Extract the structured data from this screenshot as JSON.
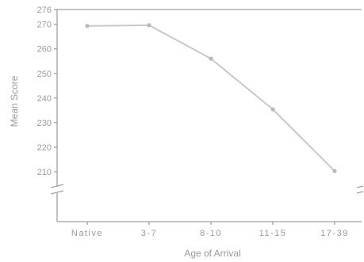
{
  "chart_data": {
    "type": "line",
    "title": "",
    "xlabel": "Age of Arrival",
    "ylabel": "Mean Score",
    "categories": [
      "Native",
      "3-7",
      "8-10",
      "11-15",
      "17-39"
    ],
    "series": [
      {
        "values": [
          269.3,
          269.6,
          256.0,
          235.4,
          210.3
        ]
      }
    ],
    "y_ticks": [
      210,
      220,
      230,
      240,
      250,
      260,
      270,
      276
    ],
    "ylim": [
      210,
      276
    ],
    "axis_break": true,
    "grid": false,
    "legend": "none",
    "colors": {
      "line": "#c8c8c8",
      "marker": "#b9b9b9",
      "axis": "#a0a0a0",
      "text": "#9a9a9a"
    }
  }
}
